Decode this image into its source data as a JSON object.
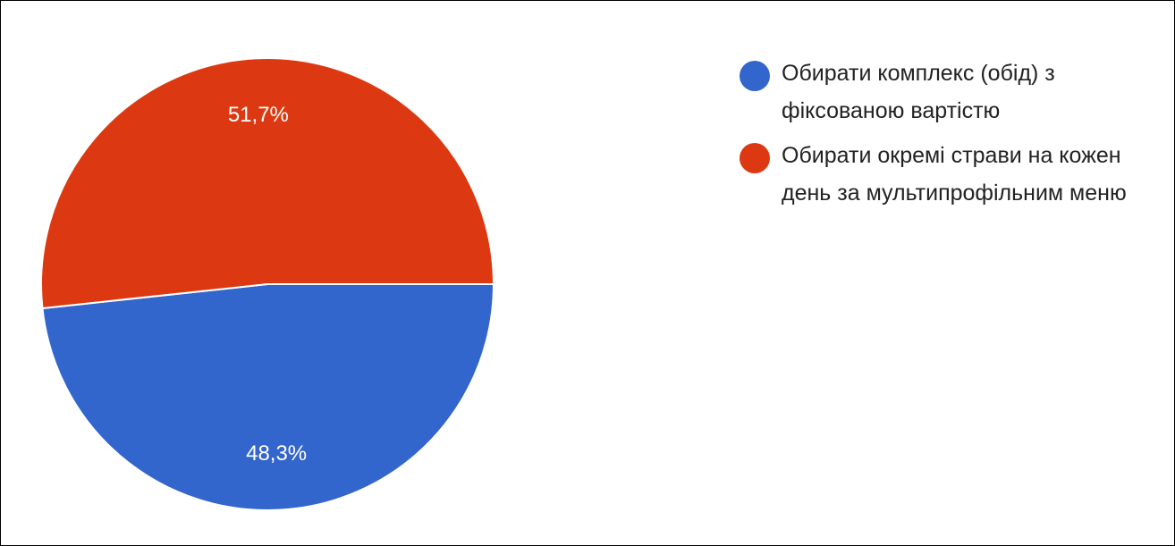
{
  "chart_data": {
    "type": "pie",
    "slices": [
      {
        "label": "Обирати комплекс (обід) з фіксованою вартістю",
        "value": 48.3,
        "display": "48,3%",
        "color": "#3366cc"
      },
      {
        "label": "Обирати окремі страви на кожен день за мультипрофільним меню",
        "value": 51.7,
        "display": "51,7%",
        "color": "#dc3912"
      }
    ],
    "legend_position": "right"
  }
}
